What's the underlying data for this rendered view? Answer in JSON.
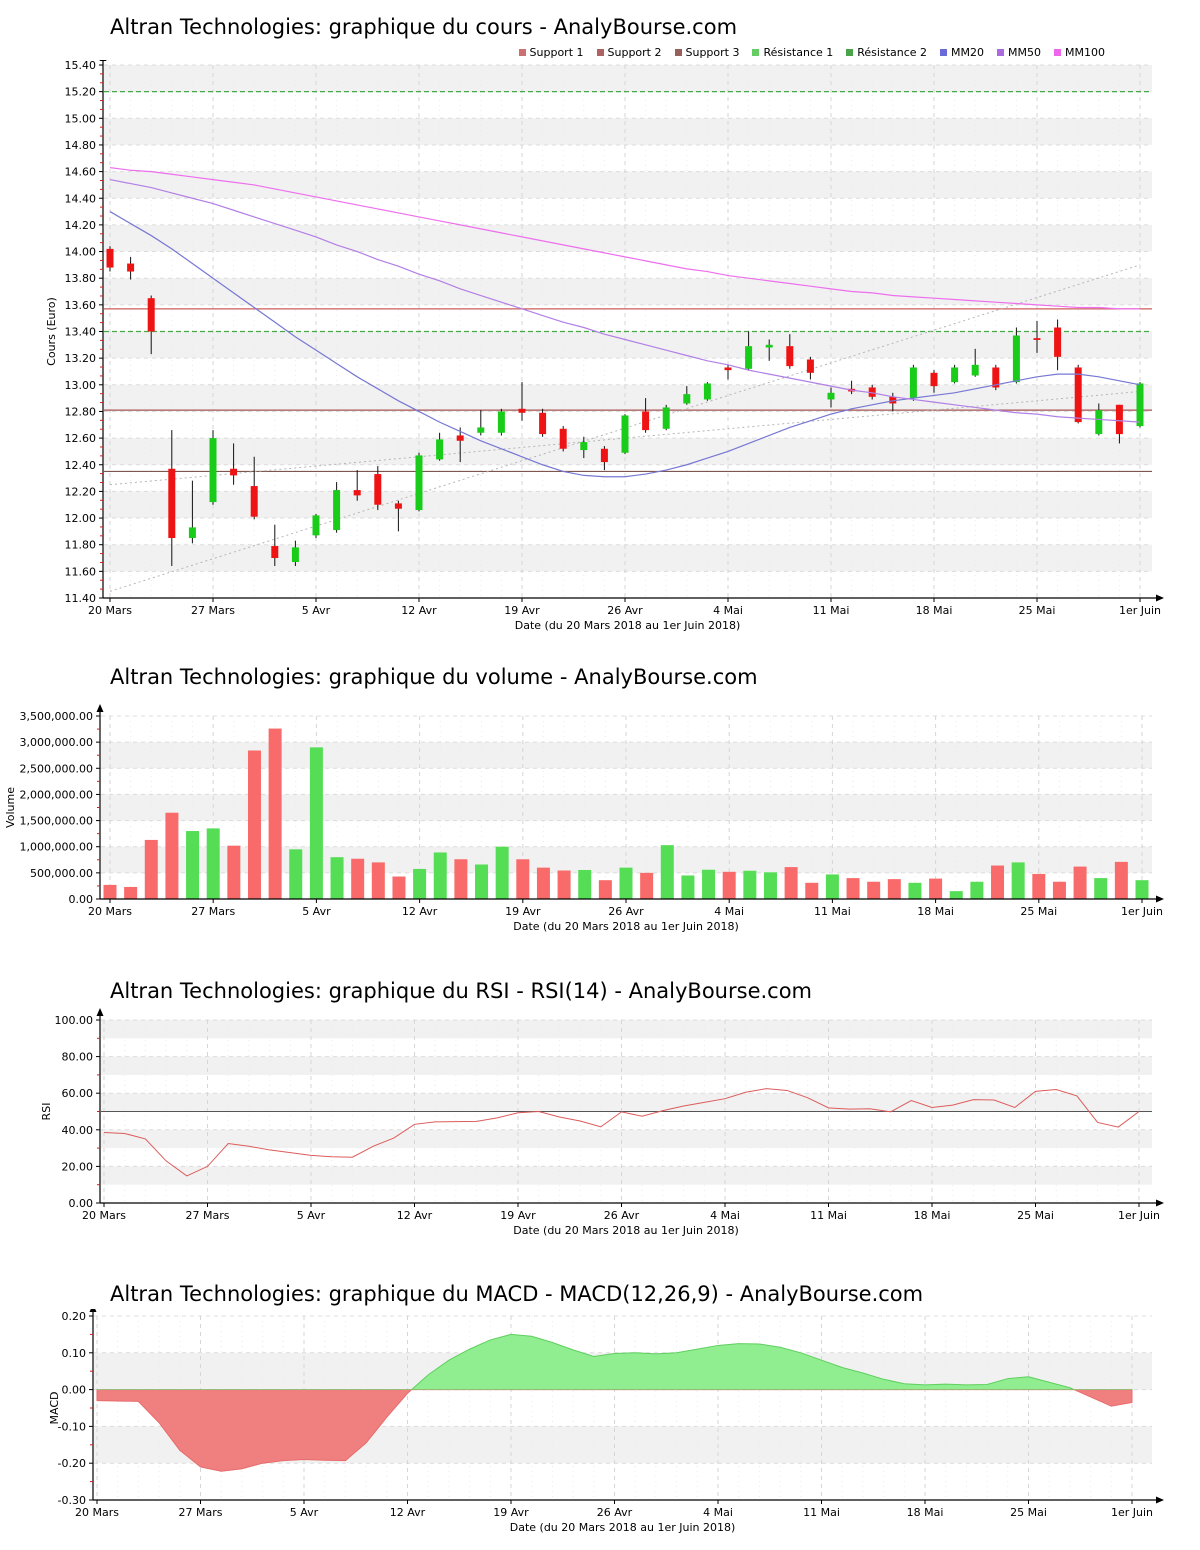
{
  "x_axis": {
    "title": "Date (du 20 Mars 2018 au 1er Juin 2018)",
    "labels": [
      "20 Mars",
      "27 Mars",
      "5 Avr",
      "12 Avr",
      "19 Avr",
      "26 Avr",
      "4 Mai",
      "11 Mai",
      "18 Mai",
      "25 Mai",
      "1er Juin"
    ],
    "indices": [
      0,
      5,
      10,
      15,
      20,
      25,
      30,
      35,
      40,
      45,
      50
    ]
  },
  "chart_data": [
    {
      "type": "candlestick",
      "title": "Altran Technologies: graphique du cours - AnalyBourse.com",
      "ylabel": "Cours (Euro)",
      "ylim": [
        11.4,
        15.4
      ],
      "ytick": 0.2,
      "band": 0.2,
      "legend": [
        {
          "label": "Support 1",
          "color": "#cd7070"
        },
        {
          "label": "Support 2",
          "color": "#b06262"
        },
        {
          "label": "Support 3",
          "color": "#97605a"
        },
        {
          "label": "Résistance 1",
          "color": "#66cc66"
        },
        {
          "label": "Résistance 2",
          "color": "#4aa54a"
        },
        {
          "label": "MM20",
          "color": "#6a6ad8"
        },
        {
          "label": "MM50",
          "color": "#aa6ae0"
        },
        {
          "label": "MM100",
          "color": "#ee66ee"
        }
      ],
      "levels": [
        {
          "label": "Support 1",
          "value": 13.57,
          "color": "#cd5c5c",
          "dash": null
        },
        {
          "label": "Support 2",
          "value": 12.81,
          "color": "#a85454",
          "dash": null
        },
        {
          "label": "Support 3",
          "value": 12.35,
          "color": "#7d564f",
          "dash": null
        },
        {
          "label": "Résistance 1",
          "value": 13.4,
          "color": "#44aa44",
          "dash": "5,3"
        },
        {
          "label": "Résistance 2",
          "value": 15.2,
          "color": "#44aa44",
          "dash": "5,3"
        }
      ],
      "trendlines": [
        {
          "x": [
            0,
            50
          ],
          "y": [
            11.45,
            13.9
          ]
        },
        {
          "x": [
            0,
            50
          ],
          "y": [
            12.25,
            12.95
          ]
        }
      ],
      "colors": {
        "up": "#19cc19",
        "down": "#ee1414",
        "wick": "#111111"
      },
      "candles": [
        [
          14.02,
          14.04,
          13.85,
          13.88
        ],
        [
          13.91,
          13.96,
          13.79,
          13.85
        ],
        [
          13.65,
          13.67,
          13.23,
          13.4
        ],
        [
          12.37,
          12.66,
          11.64,
          11.85
        ],
        [
          11.85,
          12.28,
          11.81,
          11.93
        ],
        [
          12.12,
          12.66,
          12.1,
          12.6
        ],
        [
          12.37,
          12.56,
          12.25,
          12.32
        ],
        [
          12.24,
          12.46,
          11.99,
          12.01
        ],
        [
          11.79,
          11.95,
          11.64,
          11.7
        ],
        [
          11.67,
          11.83,
          11.64,
          11.78
        ],
        [
          11.87,
          12.03,
          11.85,
          12.02
        ],
        [
          11.91,
          12.27,
          11.89,
          12.21
        ],
        [
          12.21,
          12.36,
          12.13,
          12.17
        ],
        [
          12.33,
          12.39,
          12.06,
          12.1
        ],
        [
          12.11,
          12.13,
          11.9,
          12.07
        ],
        [
          12.06,
          12.49,
          12.05,
          12.47
        ],
        [
          12.44,
          12.64,
          12.43,
          12.59
        ],
        [
          12.62,
          12.68,
          12.42,
          12.58
        ],
        [
          12.64,
          12.81,
          12.62,
          12.68
        ],
        [
          12.64,
          12.82,
          12.62,
          12.8
        ],
        [
          12.82,
          13.02,
          12.73,
          12.79
        ],
        [
          12.79,
          12.82,
          12.61,
          12.63
        ],
        [
          12.67,
          12.69,
          12.5,
          12.52
        ],
        [
          12.51,
          12.61,
          12.45,
          12.57
        ],
        [
          12.52,
          12.54,
          12.36,
          12.42
        ],
        [
          12.49,
          12.78,
          12.48,
          12.77
        ],
        [
          12.8,
          12.9,
          12.64,
          12.66
        ],
        [
          12.67,
          12.85,
          12.66,
          12.83
        ],
        [
          12.86,
          12.99,
          12.85,
          12.93
        ],
        [
          12.89,
          13.02,
          12.88,
          13.01
        ],
        [
          13.13,
          13.15,
          13.04,
          13.11
        ],
        [
          13.12,
          13.4,
          13.11,
          13.29
        ],
        [
          13.28,
          13.34,
          13.18,
          13.3
        ],
        [
          13.29,
          13.38,
          13.12,
          13.14
        ],
        [
          13.19,
          13.21,
          13.04,
          13.09
        ],
        [
          12.89,
          12.98,
          12.83,
          12.94
        ],
        [
          12.97,
          13.03,
          12.93,
          12.95
        ],
        [
          12.98,
          13.0,
          12.89,
          12.91
        ],
        [
          12.91,
          12.94,
          12.8,
          12.86
        ],
        [
          12.9,
          13.15,
          12.88,
          13.13
        ],
        [
          13.09,
          13.11,
          12.94,
          12.99
        ],
        [
          13.02,
          13.15,
          13.01,
          13.13
        ],
        [
          13.07,
          13.27,
          13.06,
          13.15
        ],
        [
          13.13,
          13.15,
          12.96,
          12.98
        ],
        [
          13.02,
          13.43,
          13.01,
          13.37
        ],
        [
          13.35,
          13.48,
          13.24,
          13.34
        ],
        [
          13.43,
          13.49,
          13.11,
          13.21
        ],
        [
          13.13,
          13.15,
          12.71,
          12.72
        ],
        [
          12.63,
          12.86,
          12.62,
          12.81
        ],
        [
          12.85,
          12.85,
          12.56,
          12.63
        ],
        [
          12.69,
          13.02,
          12.68,
          13.01
        ]
      ],
      "overlays": [
        {
          "name": "MM20",
          "color": "#7777d4",
          "values": [
            14.3,
            14.21,
            14.12,
            14.02,
            13.91,
            13.8,
            13.69,
            13.58,
            13.47,
            13.36,
            13.26,
            13.16,
            13.06,
            12.97,
            12.88,
            12.8,
            12.72,
            12.65,
            12.58,
            12.52,
            12.46,
            12.4,
            12.35,
            12.32,
            12.31,
            12.31,
            12.33,
            12.36,
            12.4,
            12.45,
            12.5,
            12.56,
            12.62,
            12.68,
            12.73,
            12.78,
            12.82,
            12.85,
            12.88,
            12.9,
            12.92,
            12.94,
            12.97,
            13.0,
            13.03,
            13.06,
            13.08,
            13.08,
            13.06,
            13.03,
            13.0
          ]
        },
        {
          "name": "MM50",
          "color": "#b27fe6",
          "values": [
            14.54,
            14.51,
            14.48,
            14.44,
            14.4,
            14.36,
            14.31,
            14.26,
            14.21,
            14.16,
            14.11,
            14.05,
            14.0,
            13.94,
            13.89,
            13.83,
            13.78,
            13.72,
            13.67,
            13.62,
            13.57,
            13.52,
            13.47,
            13.43,
            13.38,
            13.34,
            13.3,
            13.26,
            13.22,
            13.18,
            13.15,
            13.11,
            13.08,
            13.05,
            13.02,
            12.99,
            12.96,
            12.94,
            12.91,
            12.89,
            12.87,
            12.85,
            12.83,
            12.81,
            12.79,
            12.78,
            12.76,
            12.75,
            12.74,
            12.73,
            12.72
          ]
        },
        {
          "name": "MM100",
          "color": "#ee6fee",
          "values": [
            14.63,
            14.61,
            14.6,
            14.58,
            14.56,
            14.54,
            14.52,
            14.5,
            14.47,
            14.44,
            14.41,
            14.38,
            14.35,
            14.32,
            14.29,
            14.26,
            14.23,
            14.2,
            14.17,
            14.14,
            14.11,
            14.08,
            14.05,
            14.02,
            13.99,
            13.96,
            13.93,
            13.9,
            13.87,
            13.85,
            13.82,
            13.8,
            13.78,
            13.76,
            13.74,
            13.72,
            13.7,
            13.69,
            13.67,
            13.66,
            13.65,
            13.64,
            13.63,
            13.62,
            13.61,
            13.6,
            13.59,
            13.58,
            13.58,
            13.57,
            13.57
          ]
        }
      ]
    },
    {
      "type": "bar",
      "title": "Altran Technologies: graphique du volume - AnalyBourse.com",
      "ylabel": "Volume",
      "ylim": [
        0,
        3500000
      ],
      "ytick": 500000,
      "band": 500000,
      "ylabels": [
        "0.00",
        "500,000.00",
        "1,000,000.00",
        "1,500,000.00",
        "2,000,000.00",
        "2,500,000.00",
        "3,000,000.00",
        "3,500,000.00"
      ],
      "colors": {
        "up": "#55dd55",
        "down": "#f96b6b"
      },
      "values": [
        270000,
        230000,
        1130000,
        1650000,
        1300000,
        1350000,
        1020000,
        2840000,
        3260000,
        950000,
        2900000,
        800000,
        770000,
        700000,
        430000,
        575000,
        890000,
        760000,
        660000,
        1000000,
        760000,
        600000,
        545000,
        555000,
        360000,
        600000,
        500000,
        1030000,
        450000,
        560000,
        520000,
        540000,
        510000,
        610000,
        310000,
        470000,
        400000,
        330000,
        380000,
        310000,
        390000,
        150000,
        330000,
        640000,
        700000,
        480000,
        330000,
        620000,
        400000,
        710000,
        360000
      ]
    },
    {
      "type": "line",
      "title": "Altran Technologies: graphique du RSI - RSI(14) - AnalyBourse.com",
      "ylabel": "RSI",
      "ylim": [
        0,
        100
      ],
      "ytick": 20,
      "band": 10,
      "midline": 50,
      "color": "#dd5b5b",
      "values": [
        38.5,
        38,
        35,
        23,
        14.8,
        20,
        32.5,
        31,
        29,
        27.5,
        26,
        25.3,
        25,
        31,
        35.5,
        43,
        44.3,
        44.5,
        44.6,
        46.5,
        49.3,
        50,
        47,
        44.8,
        41.6,
        49.8,
        47.4,
        50.5,
        53,
        55,
        57,
        60.5,
        62.5,
        61.5,
        57.5,
        52,
        51.3,
        51.5,
        49.8,
        56,
        52.2,
        53.5,
        56.5,
        56.3,
        52.2,
        61,
        62,
        58.5,
        44,
        41.5,
        50
      ]
    },
    {
      "type": "area",
      "title": "Altran Technologies: graphique du MACD - MACD(12,26,9) - AnalyBourse.com",
      "ylabel": "MACD",
      "ylim": [
        -0.3,
        0.2
      ],
      "ytick": 0.1,
      "band": 0.1,
      "pos": {
        "fill": "#90ee90",
        "stroke": "#5ecf5e"
      },
      "neg": {
        "fill": "#f08080",
        "stroke": "#e86a6a"
      },
      "values": [
        -0.03,
        -0.031,
        -0.032,
        -0.09,
        -0.165,
        -0.21,
        -0.222,
        -0.215,
        -0.2,
        -0.193,
        -0.19,
        -0.192,
        -0.193,
        -0.145,
        -0.075,
        -0.01,
        0.04,
        0.08,
        0.11,
        0.135,
        0.15,
        0.145,
        0.128,
        0.108,
        0.09,
        0.098,
        0.1,
        0.097,
        0.1,
        0.11,
        0.12,
        0.125,
        0.124,
        0.115,
        0.1,
        0.08,
        0.06,
        0.045,
        0.028,
        0.016,
        0.013,
        0.015,
        0.013,
        0.014,
        0.03,
        0.035,
        0.02,
        0.005,
        -0.02,
        -0.045,
        -0.035
      ]
    }
  ]
}
